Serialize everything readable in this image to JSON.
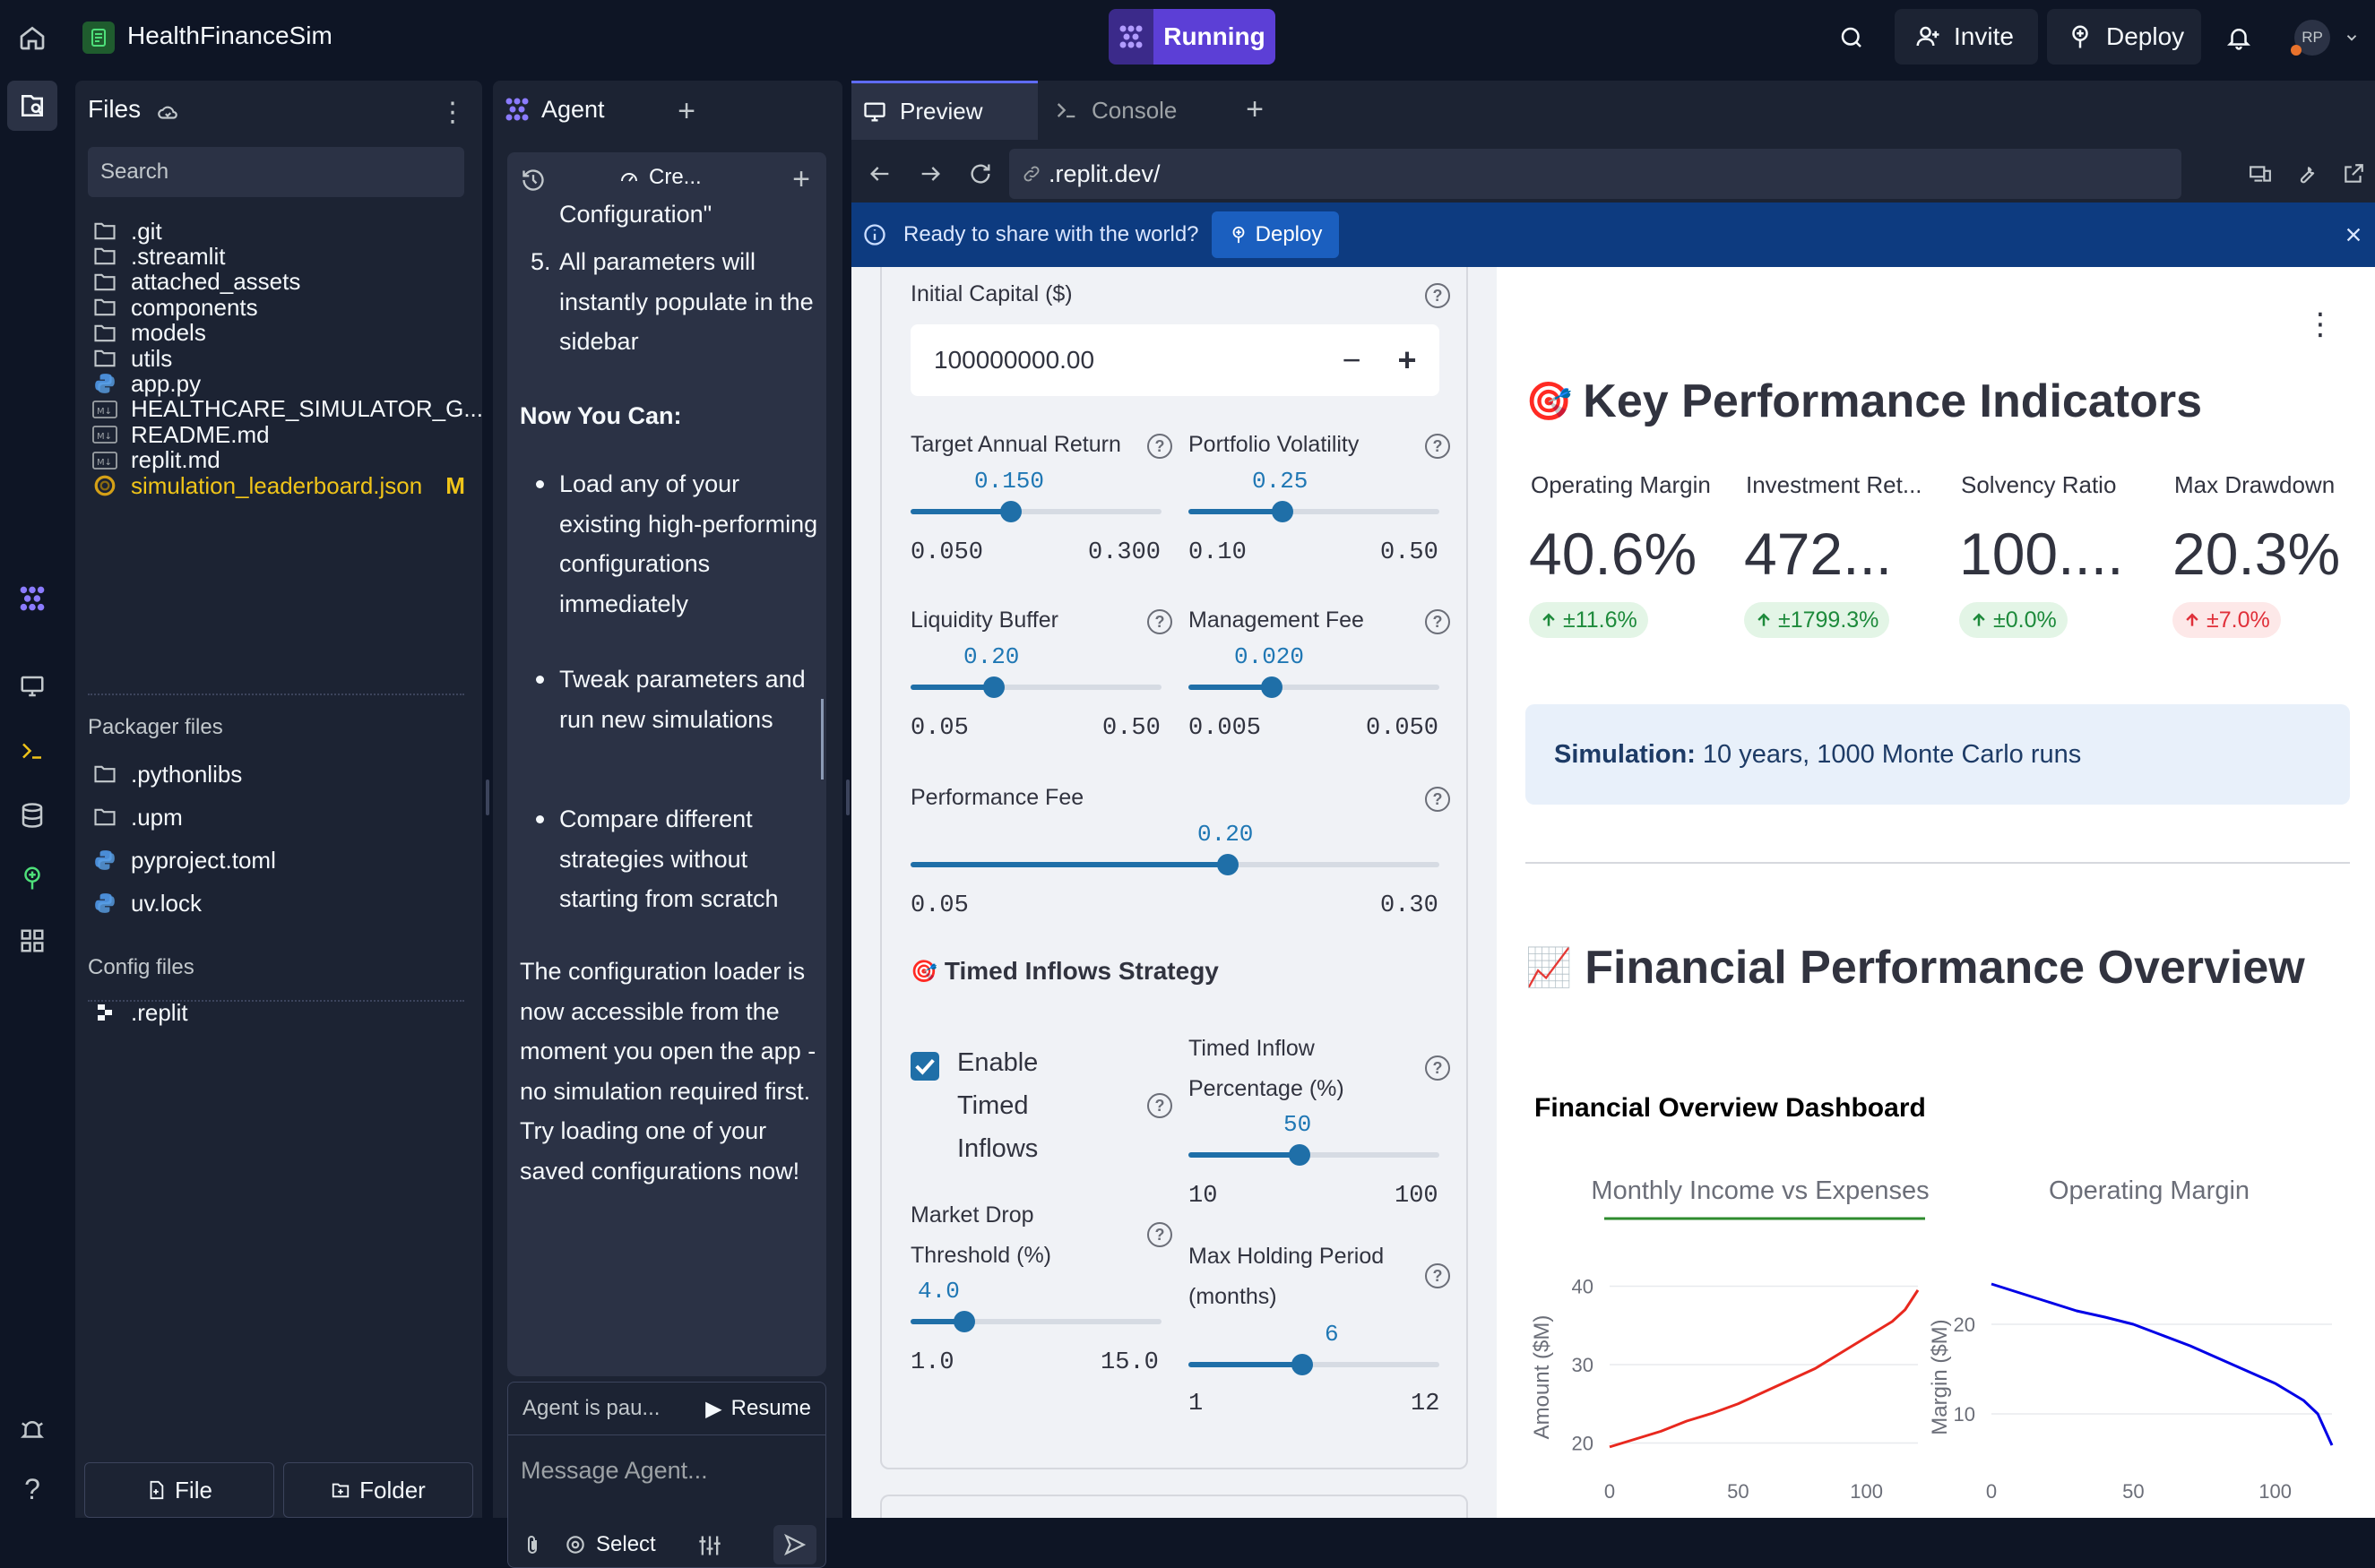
{
  "topbar": {
    "project_name": "HealthFinanceSim",
    "run_status": "Running",
    "invite_label": "Invite",
    "deploy_label": "Deploy",
    "avatar_initials": "RP"
  },
  "files": {
    "title": "Files",
    "search_placeholder": "Search",
    "items": [
      {
        "name": ".git",
        "icon": "folder"
      },
      {
        "name": ".streamlit",
        "icon": "folder"
      },
      {
        "name": "attached_assets",
        "icon": "folder"
      },
      {
        "name": "components",
        "icon": "folder"
      },
      {
        "name": "models",
        "icon": "folder"
      },
      {
        "name": "utils",
        "icon": "folder"
      },
      {
        "name": "app.py",
        "icon": "python"
      },
      {
        "name": "HEALTHCARE_SIMULATOR_G...",
        "icon": "markdown"
      },
      {
        "name": "README.md",
        "icon": "markdown"
      },
      {
        "name": "replit.md",
        "icon": "markdown"
      },
      {
        "name": "simulation_leaderboard.json",
        "icon": "json",
        "badge": "M"
      }
    ],
    "packager_title": "Packager files",
    "packager_items": [
      {
        "name": ".pythonlibs",
        "icon": "folder"
      },
      {
        "name": ".upm",
        "icon": "folder"
      },
      {
        "name": "pyproject.toml",
        "icon": "python"
      },
      {
        "name": "uv.lock",
        "icon": "python"
      }
    ],
    "config_title": "Config files",
    "config_items": [
      {
        "name": ".replit",
        "icon": "replit"
      }
    ],
    "new_file_label": "File",
    "new_folder_label": "Folder"
  },
  "agent": {
    "tab_label": "Agent",
    "checkpoint_label": "Cre...",
    "messages": {
      "line_top": "Configuration\"",
      "step5_num": "5.",
      "step5": "All parameters will instantly populate in the sidebar",
      "now_you_can": "Now You Can:",
      "bullets": [
        "Load any of your existing high-performing configurations immediately",
        "Tweak parameters and run new simulations",
        "Compare different strategies without starting from scratch"
      ],
      "closing": "The configuration loader is now accessible from the moment you open the app - no simulation required first. Try loading one of your saved configurations now!"
    },
    "paused_text": "Agent is pau...",
    "resume_label": "Resume",
    "input_placeholder": "Message Agent...",
    "select_label": "Select"
  },
  "preview": {
    "tabs": [
      {
        "label": "Preview"
      },
      {
        "label": "Console"
      }
    ],
    "url": ".replit.dev/",
    "banner_text": "Ready to share with the world?",
    "banner_deploy": "Deploy"
  },
  "sidebar": {
    "initial_capital": {
      "label": "Initial Capital ($)",
      "value": "100000000.00"
    },
    "sliders": {
      "target_return": {
        "label": "Target Annual Return",
        "value": "0.150",
        "min": "0.050",
        "max": "0.300",
        "fraction": 0.4
      },
      "volatility": {
        "label": "Portfolio Volatility",
        "value": "0.25",
        "min": "0.10",
        "max": "0.50",
        "fraction": 0.375
      },
      "liquidity": {
        "label": "Liquidity Buffer",
        "value": "0.20",
        "min": "0.05",
        "max": "0.50",
        "fraction": 0.333
      },
      "mgmt_fee": {
        "label": "Management Fee",
        "value": "0.020",
        "min": "0.005",
        "max": "0.050",
        "fraction": 0.333
      },
      "perf_fee": {
        "label": "Performance Fee",
        "value": "0.20",
        "min": "0.05",
        "max": "0.30",
        "fraction": 0.6
      },
      "inflow_pct": {
        "label1": "Timed Inflow",
        "label2": "Percentage (%)",
        "value": "50",
        "min": "10",
        "max": "100",
        "fraction": 0.444
      },
      "market_drop": {
        "label1": "Market Drop",
        "label2": "Threshold (%)",
        "value": "4.0",
        "min": "1.0",
        "max": "15.0",
        "fraction": 0.214
      },
      "max_hold": {
        "label1": "Max Holding Period",
        "label2": "(months)",
        "value": "6",
        "min": "1",
        "max": "12",
        "fraction": 0.455
      }
    },
    "timed_section": {
      "emoji": "🎯",
      "title": "Timed Inflows Strategy"
    },
    "enable_timed": {
      "line1": "Enable",
      "line2": "Timed",
      "line3": "Inflows",
      "checked": true
    }
  },
  "main": {
    "kpi_emoji": "🎯",
    "kpi_title": "Key Performance Indicators",
    "kpis": [
      {
        "label": "Operating Margin",
        "value": "40.6%",
        "delta": "±11.6%",
        "delta_color": "green"
      },
      {
        "label": "Investment Ret...",
        "value": "472...",
        "delta": "±1799.3%",
        "delta_color": "green"
      },
      {
        "label": "Solvency Ratio",
        "value": "100....",
        "delta": "±0.0%",
        "delta_color": "green"
      },
      {
        "label": "Max Drawdown",
        "value": "20.3%",
        "delta": "±7.0%",
        "delta_color": "red"
      }
    ],
    "sim_info": {
      "label": "Simulation:",
      "text": "10 years, 1000 Monte Carlo runs"
    },
    "overview_emoji": "📈",
    "overview_title": "Financial Performance Overview",
    "dashboard_title": "Financial Overview Dashboard"
  },
  "chart_data": [
    {
      "type": "line",
      "title": "Monthly Income vs Expenses",
      "ylabel": "Amount ($M)",
      "xlabel": "",
      "xlim": [
        0,
        120
      ],
      "ylim": [
        18,
        42
      ],
      "xticks": [
        "0",
        "50",
        "100"
      ],
      "yticks": [
        "20",
        "30",
        "40"
      ],
      "series": [
        {
          "name": "",
          "color": "#e8281e",
          "x": [
            0,
            10,
            20,
            30,
            40,
            50,
            60,
            70,
            80,
            90,
            100,
            110,
            115,
            120
          ],
          "y": [
            19.5,
            20.5,
            21.5,
            22.8,
            23.8,
            25,
            26.5,
            28,
            29.5,
            31.5,
            33.5,
            35.5,
            37,
            39.5
          ]
        }
      ]
    },
    {
      "type": "line",
      "title": "Operating Margin",
      "ylabel": "Margin ($M)",
      "xlabel": "",
      "xlim": [
        0,
        120
      ],
      "ylim": [
        5,
        26
      ],
      "xticks": [
        "0",
        "50",
        "100"
      ],
      "yticks": [
        "10",
        "20"
      ],
      "series": [
        {
          "name": "",
          "color": "#0000e6",
          "x": [
            0,
            10,
            20,
            30,
            40,
            50,
            60,
            70,
            80,
            90,
            100,
            110,
            115,
            120
          ],
          "y": [
            24.5,
            23.5,
            22.5,
            21.5,
            20.8,
            20,
            18.8,
            17.6,
            16.2,
            14.8,
            13.4,
            11.5,
            10,
            6.5
          ]
        }
      ]
    }
  ],
  "colors": {
    "accent": "#5f6bff",
    "running": "#5c3fd6",
    "banner": "#0d3b80",
    "slider": "#1f6fa8"
  }
}
